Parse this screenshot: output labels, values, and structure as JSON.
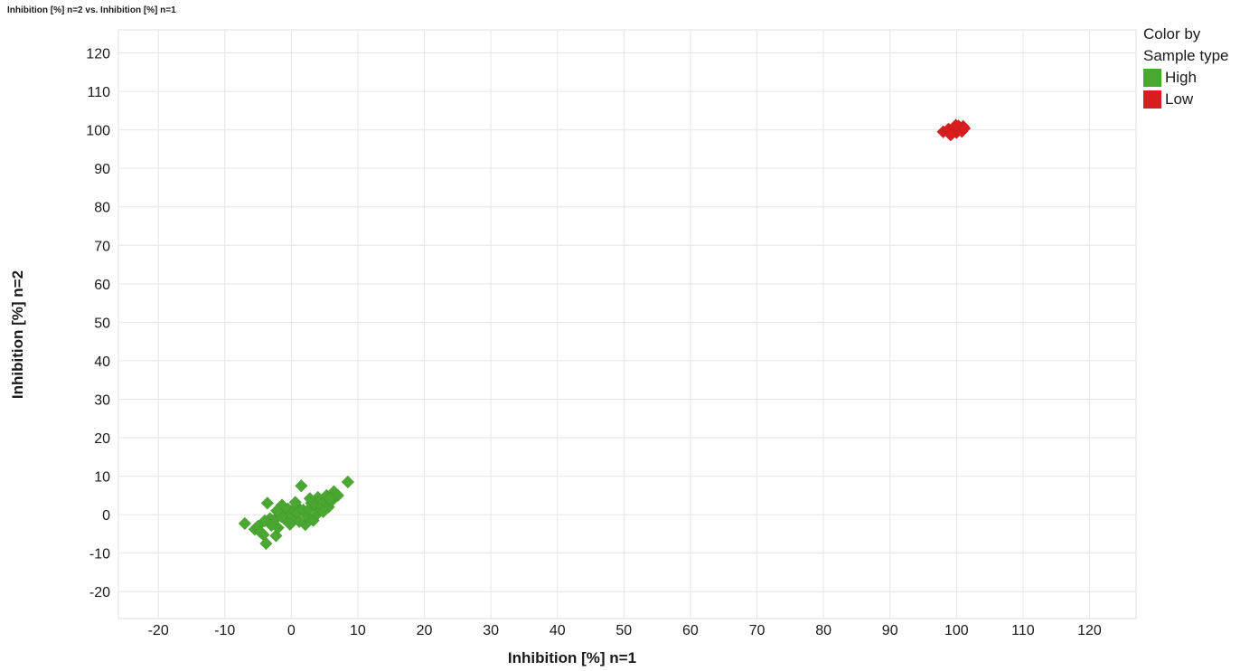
{
  "chart_data": {
    "type": "scatter",
    "title": "Inhibition [%] n=2 vs. Inhibition [%] n=1",
    "xlabel": "Inhibition [%] n=1",
    "ylabel": "Inhibition [%] n=2",
    "xlim": [
      -26,
      127
    ],
    "ylim": [
      -27,
      126
    ],
    "xticks": [
      -20,
      -10,
      0,
      10,
      20,
      30,
      40,
      50,
      60,
      70,
      80,
      90,
      100,
      110,
      120
    ],
    "yticks": [
      -20,
      -10,
      0,
      10,
      20,
      30,
      40,
      50,
      60,
      70,
      80,
      90,
      100,
      110,
      120
    ],
    "grid": true,
    "marker": "diamond",
    "legend": {
      "title": "Color by Sample type",
      "title_line1": "Color by",
      "title_line2": "Sample type",
      "position": "right",
      "entries": [
        {
          "label": "High",
          "color": "#4aa832"
        },
        {
          "label": "Low",
          "color": "#d81e1e"
        }
      ]
    },
    "series": [
      {
        "name": "High",
        "color": "#4aa832",
        "points": [
          [
            -7,
            -2.3
          ],
          [
            -5.5,
            -3.8
          ],
          [
            -5,
            -3
          ],
          [
            -4.6,
            -4.6
          ],
          [
            -4.2,
            -5.2
          ],
          [
            -3.8,
            -7.5
          ],
          [
            -3.6,
            3
          ],
          [
            -3.2,
            -1
          ],
          [
            -2.6,
            -1.5
          ],
          [
            -2.3,
            -5.5
          ],
          [
            -2,
            -3.4
          ],
          [
            -1.7,
            0
          ],
          [
            -1.4,
            2.5
          ],
          [
            -1.1,
            -1
          ],
          [
            -0.8,
            0.5
          ],
          [
            -0.5,
            1.5
          ],
          [
            0,
            0
          ],
          [
            0.2,
            -0.5
          ],
          [
            0.5,
            1
          ],
          [
            0.8,
            2.2
          ],
          [
            1,
            0.5
          ],
          [
            1.5,
            7.5
          ],
          [
            1.8,
            1.2
          ],
          [
            2.1,
            -2.6
          ],
          [
            2.4,
            -0.5
          ],
          [
            2.7,
            1.5
          ],
          [
            3,
            3
          ],
          [
            3.3,
            -1.5
          ],
          [
            3.6,
            2.5
          ],
          [
            4,
            4.5
          ],
          [
            4.3,
            1
          ],
          [
            4.6,
            2
          ],
          [
            5,
            3.5
          ],
          [
            5.3,
            5
          ],
          [
            5.6,
            2
          ],
          [
            6,
            3.5
          ],
          [
            6.4,
            6
          ],
          [
            7,
            5
          ],
          [
            8.5,
            8.5
          ],
          [
            -1.5,
            -0.5
          ],
          [
            -0.2,
            -2.5
          ],
          [
            1.2,
            -1.8
          ],
          [
            2.8,
            4.2
          ],
          [
            3.9,
            0.2
          ],
          [
            -3,
            -2.8
          ],
          [
            -2.2,
            1
          ],
          [
            4.8,
            0.8
          ],
          [
            5.8,
            4.2
          ],
          [
            0.6,
            3.2
          ],
          [
            -4,
            -1.6
          ]
        ]
      },
      {
        "name": "Low",
        "color": "#d81e1e",
        "points": [
          [
            98,
            99.5
          ],
          [
            98.8,
            100.2
          ],
          [
            99.3,
            99
          ],
          [
            99.6,
            100.6
          ],
          [
            100,
            99.3
          ],
          [
            100.3,
            101
          ],
          [
            100.6,
            100.2
          ],
          [
            101,
            100.9
          ],
          [
            100.8,
            99.6
          ],
          [
            99.9,
            101.2
          ],
          [
            101.2,
            100.4
          ],
          [
            99.1,
            98.7
          ]
        ]
      }
    ]
  }
}
